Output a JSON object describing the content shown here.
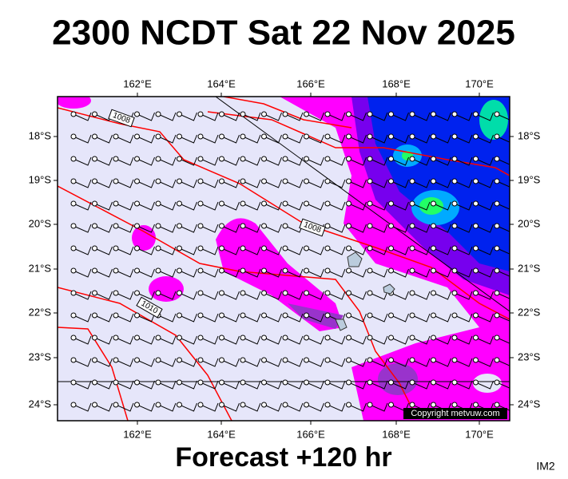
{
  "header": {
    "title": "2300 NCDT Sat 22 Nov 2025"
  },
  "map": {
    "top_labels": [
      "162°E",
      "164°E",
      "166°E",
      "168°E",
      "170°E"
    ],
    "bottom_labels": [
      "162°E",
      "164°E",
      "166°E",
      "168°E",
      "170°E"
    ],
    "left_labels": [
      "18°S",
      "19°S",
      "20°S",
      "21°S",
      "22°S",
      "23°S",
      "24°S"
    ],
    "right_labels": [
      "18°S",
      "19°S",
      "20°S",
      "21°S",
      "22°S",
      "23°S",
      "24°S"
    ],
    "isobar_labels": [
      "1008",
      "1008",
      "1010"
    ],
    "copyright": "Copyright metvuw.com"
  },
  "footer": {
    "forecast": "Forecast +120 hr",
    "code": "IM2"
  }
}
